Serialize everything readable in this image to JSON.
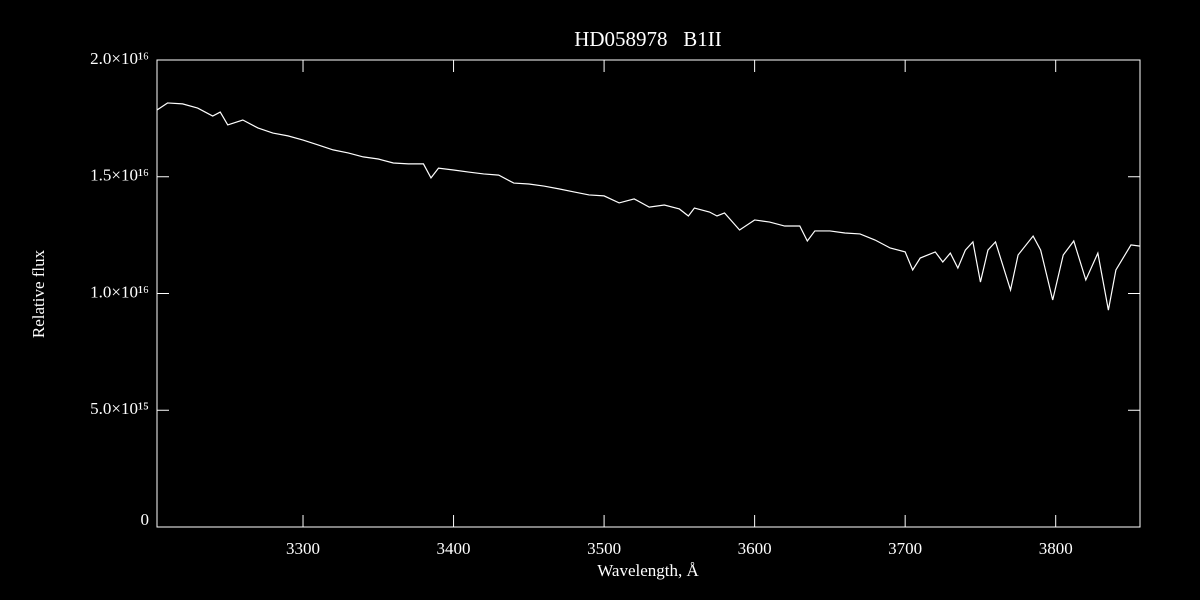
{
  "chart_data": {
    "type": "line",
    "title": "HD058978   B1II",
    "xlabel": "Wavelength, Å",
    "ylabel": "Relative flux",
    "xlim": [
      3203,
      3856
    ],
    "ylim": [
      0,
      2e+16
    ],
    "xticks": [
      3300,
      3400,
      3500,
      3600,
      3700,
      3800
    ],
    "yticks": [
      0,
      {
        "value": 5000000000000000.0,
        "label": "5.0×10¹⁵"
      },
      {
        "value": 1e+16,
        "label": "1.0×10¹⁶"
      },
      {
        "value": 1.5e+16,
        "label": "1.5×10¹⁶"
      },
      {
        "value": 2e+16,
        "label": "2.0×10¹⁶"
      }
    ],
    "color": "#ffffff",
    "x": [
      3203,
      3210,
      3220,
      3230,
      3240,
      3245,
      3250,
      3260,
      3270,
      3280,
      3290,
      3300,
      3310,
      3320,
      3330,
      3340,
      3350,
      3360,
      3370,
      3380,
      3385,
      3390,
      3400,
      3410,
      3420,
      3430,
      3440,
      3450,
      3460,
      3470,
      3480,
      3490,
      3500,
      3510,
      3520,
      3530,
      3540,
      3550,
      3556,
      3560,
      3570,
      3575,
      3580,
      3590,
      3600,
      3610,
      3620,
      3630,
      3635,
      3640,
      3650,
      3660,
      3670,
      3680,
      3690,
      3700,
      3705,
      3710,
      3720,
      3725,
      3730,
      3735,
      3740,
      3745,
      3750,
      3755,
      3760,
      3770,
      3775,
      3785,
      3790,
      3798,
      3805,
      3812,
      3820,
      3828,
      3835,
      3840,
      3850,
      3856
    ],
    "values": [
      1.786e+16,
      1.816e+16,
      1.812e+16,
      1.794e+16,
      1.76e+16,
      1.777e+16,
      1.722e+16,
      1.743e+16,
      1.709e+16,
      1.687e+16,
      1.675e+16,
      1.657e+16,
      1.636e+16,
      1.615e+16,
      1.602e+16,
      1.585e+16,
      1.576e+16,
      1.559e+16,
      1.555e+16,
      1.555e+16,
      1.495e+16,
      1.537e+16,
      1.529e+16,
      1.52e+16,
      1.512e+16,
      1.507e+16,
      1.473e+16,
      1.469e+16,
      1.46e+16,
      1.448e+16,
      1.435e+16,
      1.422e+16,
      1.418e+16,
      1.388e+16,
      1.405e+16,
      1.37e+16,
      1.379e+16,
      1.362e+16,
      1.332e+16,
      1.366e+16,
      1.349e+16,
      1.332e+16,
      1.345e+16,
      1.272e+16,
      1.315e+16,
      1.306e+16,
      1.289e+16,
      1.289e+16,
      1.225e+16,
      1.268e+16,
      1.268e+16,
      1.259e+16,
      1.255e+16,
      1.229e+16,
      1.195e+16,
      1.178e+16,
      1.101e+16,
      1.152e+16,
      1.178e+16,
      1.135e+16,
      1.173e+16,
      1.109e+16,
      1.186e+16,
      1.221e+16,
      1.049e+16,
      1.186e+16,
      1.221e+16,
      1.015e+16,
      1.165e+16,
      1.246e+16,
      1.186e+16,
      9720000000000000.0,
      1.165e+16,
      1.225e+16,
      1.058e+16,
      1.173e+16,
      9290000000000000.0,
      1.101e+16,
      1.208e+16,
      1.203e+16
    ]
  }
}
